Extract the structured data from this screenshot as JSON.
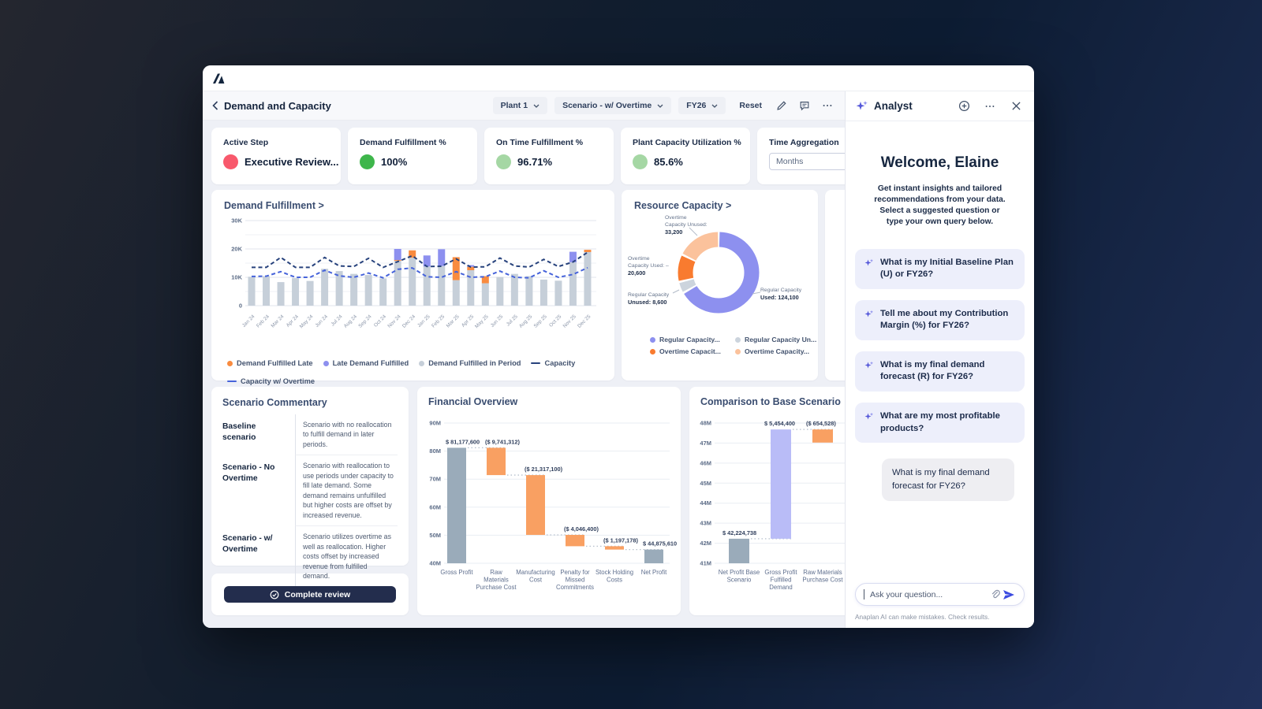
{
  "header": {
    "title": "Demand and Capacity",
    "plant_dropdown": "Plant 1",
    "scenario_dropdown": "Scenario - w/ Overtime",
    "year_dropdown": "FY26",
    "reset_label": "Reset"
  },
  "kpis": [
    {
      "label": "Active Step",
      "value": "Executive Review...",
      "color": "#f8596c"
    },
    {
      "label": "Demand Fulfillment %",
      "value": "100%",
      "color": "#3eb64b"
    },
    {
      "label": "On Time Fulfillment %",
      "value": "96.71%",
      "color": "#a5d7a4"
    },
    {
      "label": "Plant Capacity Utilization %",
      "value": "85.6%",
      "color": "#a5d7a4"
    }
  ],
  "time_aggregation": {
    "label": "Time Aggregation",
    "value": "Months"
  },
  "chart_data": [
    {
      "type": "bar",
      "title": "Demand Fulfillment >",
      "unit": "thousands",
      "ylim": [
        0,
        32
      ],
      "yticks": [
        "0",
        "10K",
        "20K",
        "30K"
      ],
      "categories": [
        "Jan 24",
        "Feb 24",
        "Mar 24",
        "Apr 24",
        "May 24",
        "Jun 24",
        "Jul 24",
        "Aug 24",
        "Sep 24",
        "Oct 24",
        "Nov 24",
        "Dec 24",
        "Jan 25",
        "Feb 25",
        "Mar 25",
        "Apr 25",
        "May 25",
        "Jun 25",
        "Jul 25",
        "Aug 25",
        "Sep 25",
        "Oct 25",
        "Nov 25",
        "Dec 25"
      ],
      "series": [
        {
          "name": "Demand Fulfilled in Period",
          "color": "#c6cfd9",
          "values": [
            10.2,
            10.4,
            8.3,
            9.7,
            8.7,
            13.0,
            12.2,
            11.2,
            10.8,
            9.6,
            15.8,
            16.9,
            13.8,
            14.0,
            9.0,
            12.5,
            7.9,
            10.1,
            11.2,
            10.4,
            9.2,
            8.8,
            15.3,
            18.9
          ]
        },
        {
          "name": "Demand Fulfilled Late",
          "color": "#f98b3f",
          "values": [
            0,
            0,
            0,
            0,
            0,
            0,
            0,
            0,
            0,
            0,
            0.3,
            2.6,
            0,
            0,
            8.1,
            1.2,
            2.5,
            0,
            0,
            0,
            0,
            0,
            0,
            0.8
          ]
        },
        {
          "name": "Late Demand Fulfilled",
          "color": "#8d90ef",
          "values": [
            0,
            0,
            0,
            0,
            0,
            0,
            0,
            0,
            0,
            0,
            3.9,
            0,
            3.9,
            5.9,
            0,
            0.6,
            0,
            0,
            0,
            0,
            0,
            0,
            3.7,
            0
          ]
        }
      ],
      "lines": [
        {
          "name": "Capacity",
          "color": "#27427c",
          "values": [
            13.5,
            13.5,
            17.0,
            13.5,
            13.5,
            17.0,
            14.0,
            13.8,
            16.7,
            13.5,
            15.5,
            17.6,
            13.8,
            13.9,
            16.5,
            13.6,
            13.7,
            16.8,
            14.0,
            13.6,
            16.3,
            13.8,
            15.4,
            18.8
          ]
        },
        {
          "name": "Capacity w/ Overtime",
          "color": "#4663da",
          "values": [
            10.3,
            10.4,
            12.0,
            10.0,
            10.0,
            12.5,
            10.5,
            10.0,
            11.5,
            9.8,
            12.8,
            13.3,
            10.2,
            10.0,
            12.0,
            10.0,
            10.2,
            12.2,
            10.0,
            9.8,
            12.3,
            10.0,
            11.0,
            13.4
          ]
        }
      ],
      "legend": [
        {
          "label": "Demand Fulfilled Late",
          "color": "#f98b3f",
          "marker": "dot"
        },
        {
          "label": "Late Demand Fulfilled",
          "color": "#8d90ef",
          "marker": "dot"
        },
        {
          "label": "Demand Fulfilled in Period",
          "color": "#c6cfd9",
          "marker": "dot"
        },
        {
          "label": "Capacity",
          "color": "#27427c",
          "marker": "dash"
        },
        {
          "label": "Capacity w/ Overtime",
          "color": "#4663da",
          "marker": "dash"
        }
      ]
    },
    {
      "type": "pie",
      "title": "Resource Capacity >",
      "segments": [
        {
          "name": "Regular Capacity Used",
          "value": 124100,
          "color": "#8d90ef"
        },
        {
          "name": "Regular Capacity Unused",
          "value": 8600,
          "color": "#ccd4dd"
        },
        {
          "name": "Overtime Capacity Used",
          "value": 20600,
          "color": "#f97b2f"
        },
        {
          "name": "Overtime Capacity Unused",
          "value": 33200,
          "color": "#fbc29c"
        }
      ],
      "callouts": [
        {
          "lines": [
            "Overtime",
            "Capacity Unused:"
          ],
          "value": "33,200"
        },
        {
          "lines": [
            "Overtime",
            "Capacity Used: –"
          ],
          "value": "20,600"
        },
        {
          "lines": [
            "Regular Capacity"
          ],
          "value": "Unused: 8,600"
        },
        {
          "lines": [
            "Regular Capacity"
          ],
          "value": "Used: 124,100"
        }
      ],
      "legend": [
        {
          "label": "Regular Capacity...",
          "color": "#8d90ef"
        },
        {
          "label": "Regular Capacity Un...",
          "color": "#ccd4dd"
        },
        {
          "label": "Overtime Capacit...",
          "color": "#f97b2f"
        },
        {
          "label": "Overtime Capacity...",
          "color": "#fbc29c"
        }
      ]
    },
    {
      "type": "bar",
      "subtype": "waterfall",
      "title": "Financial Overview",
      "ymin": 40,
      "ymax": 90,
      "ystep": 10,
      "steps": [
        {
          "label_lines": [
            "Gross Profit"
          ],
          "value": 81177600,
          "display": "$ 81,177,600",
          "kind": "total"
        },
        {
          "label_lines": [
            "Raw",
            "Materials",
            "Purchase Cost"
          ],
          "value": -9741312,
          "display": "($ 9,741,312)",
          "kind": "down"
        },
        {
          "label_lines": [
            "Manufacturing",
            "Cost"
          ],
          "value": -21317100,
          "display": "($ 21,317,100)",
          "kind": "down"
        },
        {
          "label_lines": [
            "Penalty for",
            "Missed",
            "Commitments"
          ],
          "value": -4046400,
          "display": "($ 4,046,400)",
          "kind": "down"
        },
        {
          "label_lines": [
            "Stock Holding",
            "Costs"
          ],
          "value": -1197178,
          "display": "($ 1,197,178)",
          "kind": "down"
        },
        {
          "label_lines": [
            "Net Profit"
          ],
          "value": 44875610,
          "display": "$ 44,875,610",
          "kind": "total"
        }
      ]
    },
    {
      "type": "bar",
      "subtype": "waterfall",
      "title": "Comparison to Base Scenario",
      "ymin": 41,
      "ymax": 48,
      "ystep": 1,
      "steps": [
        {
          "label_lines": [
            "Net Profit Base",
            "Scenario"
          ],
          "value": 42224738,
          "display": "$ 42,224,738",
          "kind": "total"
        },
        {
          "label_lines": [
            "Gross Profit",
            "Fulfilled",
            "Demand"
          ],
          "value": 5454400,
          "display": "$ 5,454,400",
          "kind": "up"
        },
        {
          "label_lines": [
            "Raw Materials",
            "Purchase Cost"
          ],
          "value": -654528,
          "display": "($ 654,528)",
          "kind": "down"
        }
      ]
    }
  ],
  "commentary": {
    "title": "Scenario Commentary",
    "rows": [
      {
        "name": "Baseline scenario",
        "text": "Scenario with no reallocation to fulfill demand in later periods."
      },
      {
        "name": "Scenario - No Overtime",
        "text": "Scenario with reallocation to use periods under capacity to fill late demand. Some demand remains unfulfilled but higher costs are offset by increased revenue."
      },
      {
        "name": "Scenario - w/ Overtime",
        "text": "Scenario utilizes overtime as well as reallocation. Higher costs offset by increased revenue from fulfilled demand."
      }
    ]
  },
  "review_button": {
    "label": "Complete review"
  },
  "analyst": {
    "title": "Analyst",
    "welcome_title": "Welcome, Elaine",
    "welcome_text": "Get instant insights and tailored recommendations from your data. Select a suggested question or type your own query below.",
    "suggestions": [
      "What is my Initial Baseline Plan (U) or FY26?",
      "Tell me about my Contribution Margin (%) for FY26?",
      "What is my final demand forecast (R) for FY26?",
      "What are my most profitable products?"
    ],
    "user_message": "What is my final demand forecast for FY26?",
    "input_placeholder": "Ask your question...",
    "disclaimer": "Anaplan AI can make mistakes. Check results."
  }
}
